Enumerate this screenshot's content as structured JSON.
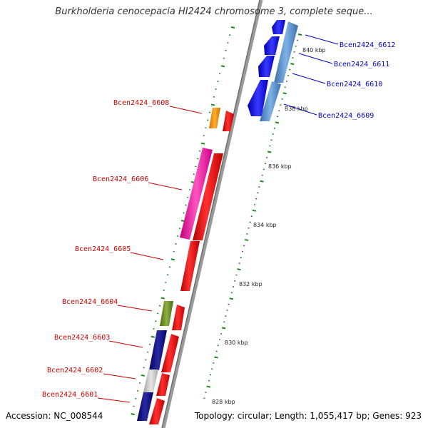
{
  "title": "Burkholderia cenocepacia HI2424 chromosome 3, complete seque...",
  "footer": {
    "accession": "Accession: NC_008544",
    "summary": "Topology: circular; Length: 1,055,417 bp; Genes: 923"
  },
  "kbp_labels": [
    "828 kbp",
    "830 kbp",
    "832 kbp",
    "834 kbp",
    "836 kbp",
    "838 kbp",
    "840 kbp"
  ],
  "gene_labels_left": [
    "Bcen2424_6608",
    "Bcen2424_6606",
    "Bcen2424_6605",
    "Bcen2424_6604",
    "Bcen2424_6603",
    "Bcen2424_6602",
    "Bcen2424_6601"
  ],
  "gene_labels_right": [
    "Bcen2424_6612",
    "Bcen2424_6611",
    "Bcen2424_6610",
    "Bcen2424_6609"
  ],
  "colors": {
    "left_label": "#cc0000",
    "right_label": "#0000cc",
    "tick": "#1a8c1a",
    "backbone": "#8c8c8c"
  }
}
